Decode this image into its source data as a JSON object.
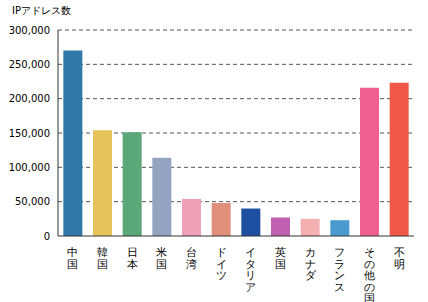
{
  "chart_data": {
    "type": "bar",
    "y_label": "IPアドレス数",
    "categories": [
      "中国",
      "韓国",
      "日本",
      "米国",
      "台湾",
      "ドイツ",
      "イタリア",
      "英国",
      "カナダ",
      "フランス",
      "その他の国",
      "不明"
    ],
    "values": [
      270000,
      154000,
      151000,
      114000,
      54000,
      48000,
      40000,
      27000,
      25000,
      23000,
      216000,
      223000
    ],
    "colors": [
      "#2f78a8",
      "#e3c35a",
      "#5aa87a",
      "#95a3c0",
      "#f0a0b8",
      "#e0907a",
      "#1f4fa0",
      "#c060b0",
      "#f4b0b0",
      "#4a9ad0",
      "#f06090",
      "#f05848"
    ],
    "ylim": [
      0,
      300000
    ],
    "yticks": [
      0,
      {
        "value": 50000,
        "label": "50,000"
      },
      {
        "value": 100000,
        "label": "100,000"
      },
      {
        "value": 150000,
        "label": "150,000"
      },
      {
        "value": 200000,
        "label": "200,000"
      },
      {
        "value": 250000,
        "label": "250,000"
      },
      {
        "value": 300000,
        "label": "300,000"
      }
    ],
    "grid": true
  }
}
